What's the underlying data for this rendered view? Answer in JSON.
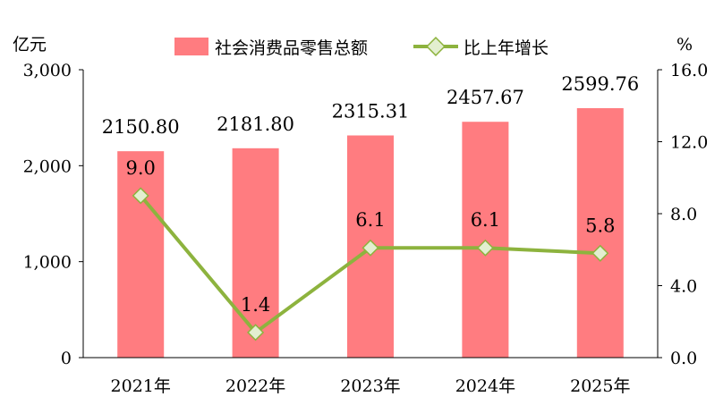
{
  "chart_data": {
    "type": "bar",
    "categories": [
      "2021年",
      "2022年",
      "2023年",
      "2024年",
      "2025年"
    ],
    "series": [
      {
        "name": "社会消费品零售总额",
        "type": "bar",
        "axis": "left",
        "color": "#FF7C80",
        "values": [
          2150.8,
          2181.8,
          2315.31,
          2457.67,
          2599.76
        ],
        "labels": [
          "2150.80",
          "2181.80",
          "2315.31",
          "2457.67",
          "2599.76"
        ]
      },
      {
        "name": "比上年增长",
        "type": "line",
        "axis": "right",
        "color": "#8DB33E",
        "marker_fill": "#E3EFD0",
        "values": [
          9.0,
          1.4,
          6.1,
          6.1,
          5.8
        ],
        "labels": [
          "9.0",
          "1.4",
          "6.1",
          "6.1",
          "5.8"
        ]
      }
    ],
    "y_left": {
      "unit": "亿元",
      "ylim": [
        0,
        3000
      ],
      "ticks": [
        0,
        1000,
        2000,
        3000
      ],
      "tick_labels": [
        "0",
        "1,000",
        "2,000",
        "3,000"
      ]
    },
    "y_right": {
      "unit": "%",
      "ylim": [
        0,
        16
      ],
      "ticks": [
        0,
        4,
        8,
        12,
        16
      ],
      "tick_labels": [
        "0.0",
        "4.0",
        "8.0",
        "12.0",
        "16.0"
      ]
    },
    "legend_position": "top-center",
    "grid": false
  }
}
